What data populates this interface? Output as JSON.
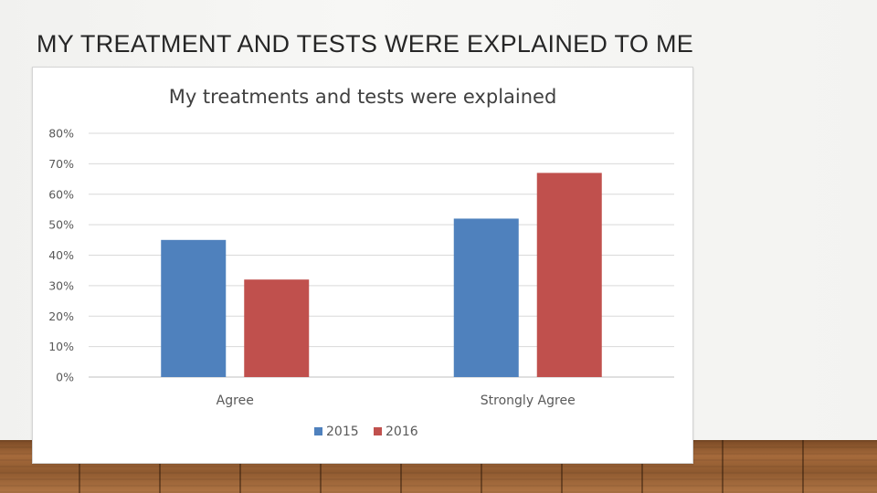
{
  "slide": {
    "title": "MY TREATMENT AND TESTS WERE EXPLAINED TO ME"
  },
  "chart_data": {
    "type": "bar",
    "title": "My treatments and tests were explained",
    "categories": [
      "Agree",
      "Strongly Agree"
    ],
    "series": [
      {
        "name": "2015",
        "values": [
          45,
          52
        ],
        "color": "#4f81bd"
      },
      {
        "name": "2016",
        "values": [
          32,
          67
        ],
        "color": "#c0504d"
      }
    ],
    "y_ticks": [
      "0%",
      "10%",
      "20%",
      "30%",
      "40%",
      "50%",
      "60%",
      "70%",
      "80%"
    ],
    "ylim": [
      0,
      80
    ],
    "y_unit": "%",
    "xlabel": "",
    "ylabel": "",
    "grid": true,
    "legend_position": "bottom"
  }
}
